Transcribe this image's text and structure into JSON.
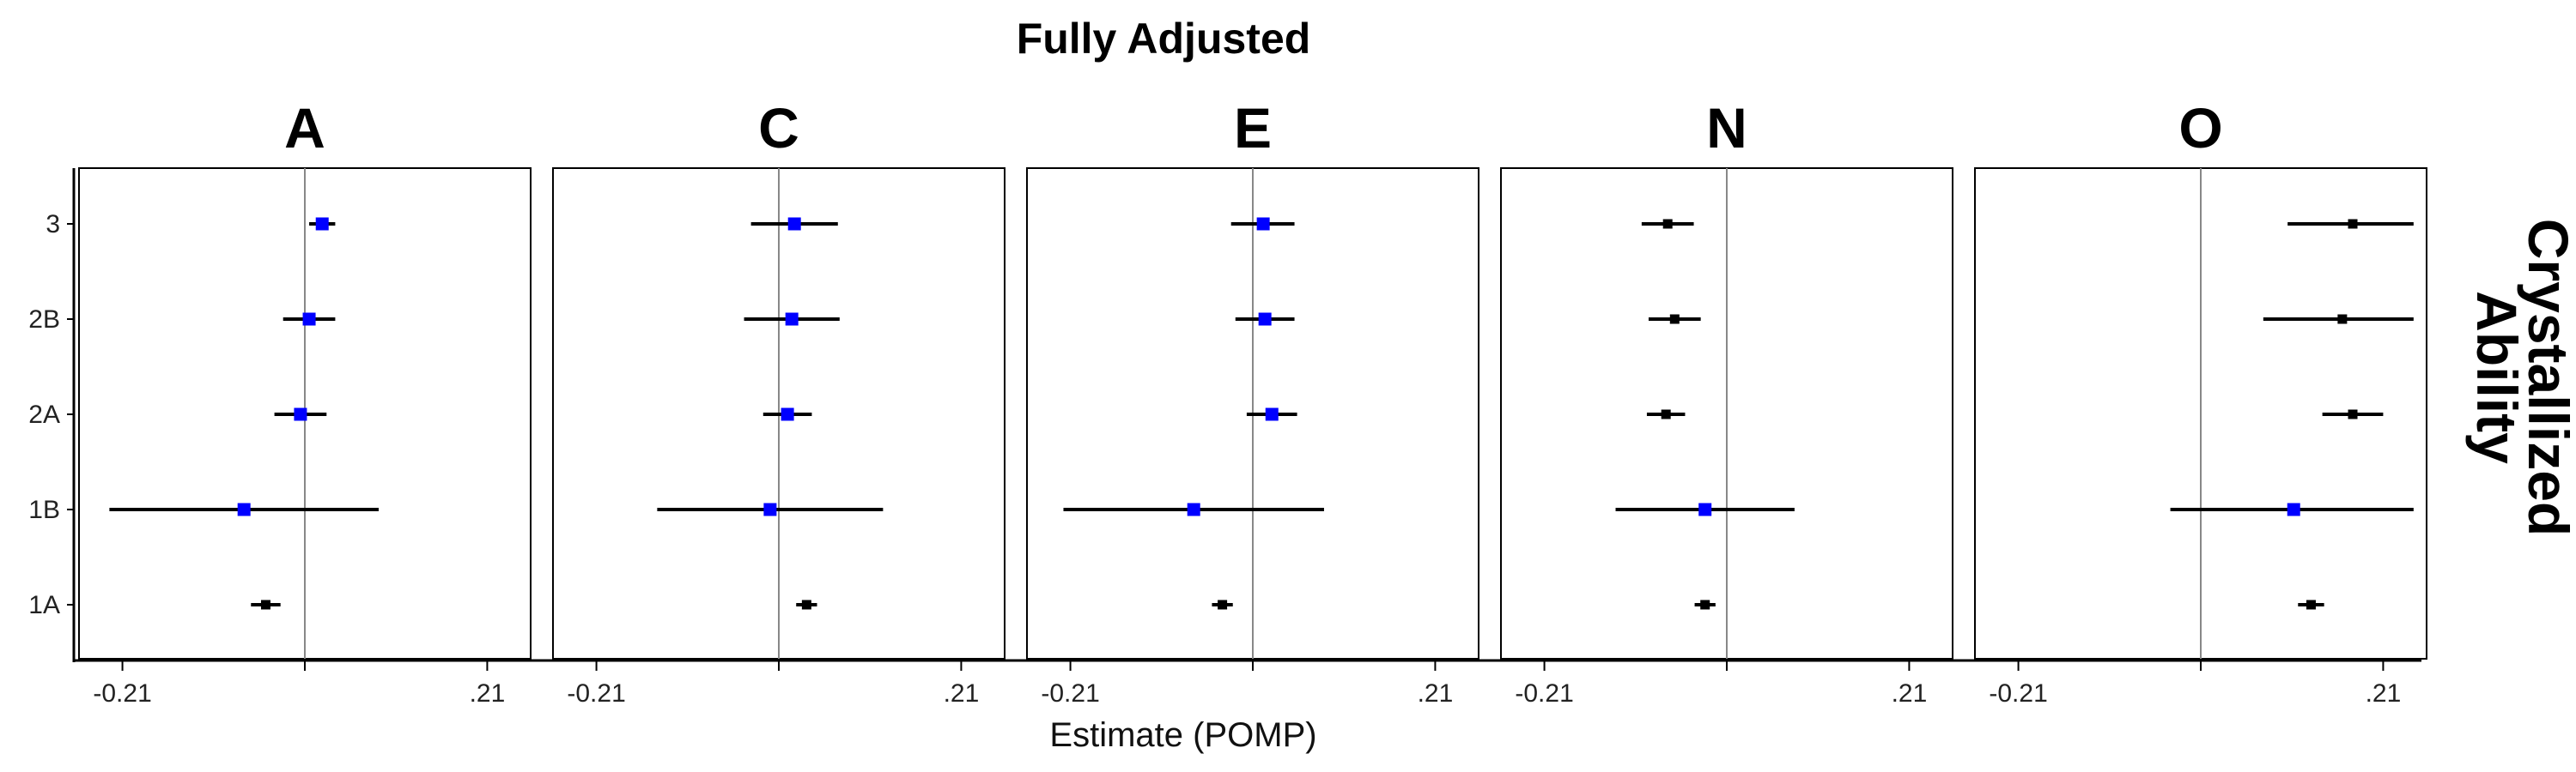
{
  "chart_data": {
    "type": "forest",
    "title": "Fully Adjusted",
    "xlabel": "Estimate (POMP)",
    "strip_label": "Crystallized Ability",
    "xlim": [
      -0.26,
      0.26
    ],
    "x_ticks": [
      -0.21,
      0,
      0.21
    ],
    "x_tick_labels": [
      "-0.21",
      "",
      ".21"
    ],
    "reference_line": 0,
    "categories": [
      "1A",
      "1B",
      "2A",
      "2B",
      "3"
    ],
    "colors": {
      "significant": "#0000ff",
      "nonsignificant": "#000000",
      "reference": "#888888"
    },
    "panels": [
      {
        "title": "A",
        "points": [
          {
            "category": "3",
            "estimate": 0.02,
            "lower": 0.005,
            "upper": 0.035,
            "color": "blue"
          },
          {
            "category": "2B",
            "estimate": 0.005,
            "lower": -0.025,
            "upper": 0.035,
            "color": "blue"
          },
          {
            "category": "2A",
            "estimate": -0.005,
            "lower": -0.035,
            "upper": 0.025,
            "color": "blue"
          },
          {
            "category": "1B",
            "estimate": -0.07,
            "lower": -0.225,
            "upper": 0.085,
            "color": "blue"
          },
          {
            "category": "1A",
            "estimate": -0.045,
            "lower": -0.062,
            "upper": -0.028,
            "color": "black"
          }
        ]
      },
      {
        "title": "C",
        "points": [
          {
            "category": "3",
            "estimate": 0.018,
            "lower": -0.032,
            "upper": 0.068,
            "color": "blue"
          },
          {
            "category": "2B",
            "estimate": 0.015,
            "lower": -0.04,
            "upper": 0.07,
            "color": "blue"
          },
          {
            "category": "2A",
            "estimate": 0.01,
            "lower": -0.018,
            "upper": 0.038,
            "color": "blue"
          },
          {
            "category": "1B",
            "estimate": -0.01,
            "lower": -0.14,
            "upper": 0.12,
            "color": "blue"
          },
          {
            "category": "1A",
            "estimate": 0.032,
            "lower": 0.02,
            "upper": 0.044,
            "color": "black"
          }
        ]
      },
      {
        "title": "E",
        "points": [
          {
            "category": "3",
            "estimate": 0.012,
            "lower": -0.025,
            "upper": 0.048,
            "color": "blue"
          },
          {
            "category": "2B",
            "estimate": 0.014,
            "lower": -0.02,
            "upper": 0.048,
            "color": "blue"
          },
          {
            "category": "2A",
            "estimate": 0.022,
            "lower": -0.007,
            "upper": 0.051,
            "color": "blue"
          },
          {
            "category": "1B",
            "estimate": -0.068,
            "lower": -0.218,
            "upper": 0.082,
            "color": "blue"
          },
          {
            "category": "1A",
            "estimate": -0.035,
            "lower": -0.047,
            "upper": -0.023,
            "color": "black"
          }
        ]
      },
      {
        "title": "N",
        "points": [
          {
            "category": "3",
            "estimate": -0.068,
            "lower": -0.098,
            "upper": -0.038,
            "color": "black"
          },
          {
            "category": "2B",
            "estimate": -0.06,
            "lower": -0.09,
            "upper": -0.03,
            "color": "black"
          },
          {
            "category": "2A",
            "estimate": -0.07,
            "lower": -0.092,
            "upper": -0.048,
            "color": "black"
          },
          {
            "category": "1B",
            "estimate": -0.025,
            "lower": -0.128,
            "upper": 0.078,
            "color": "blue"
          },
          {
            "category": "1A",
            "estimate": -0.025,
            "lower": -0.037,
            "upper": -0.013,
            "color": "black"
          }
        ]
      },
      {
        "title": "O",
        "points": [
          {
            "category": "3",
            "estimate": 0.175,
            "lower": 0.1,
            "upper": 0.245,
            "color": "black"
          },
          {
            "category": "2B",
            "estimate": 0.163,
            "lower": 0.072,
            "upper": 0.245,
            "color": "black"
          },
          {
            "category": "2A",
            "estimate": 0.175,
            "lower": 0.14,
            "upper": 0.21,
            "color": "black"
          },
          {
            "category": "1B",
            "estimate": 0.107,
            "lower": -0.035,
            "upper": 0.245,
            "color": "blue"
          },
          {
            "category": "1A",
            "estimate": 0.127,
            "lower": 0.112,
            "upper": 0.142,
            "color": "black"
          }
        ]
      }
    ]
  }
}
